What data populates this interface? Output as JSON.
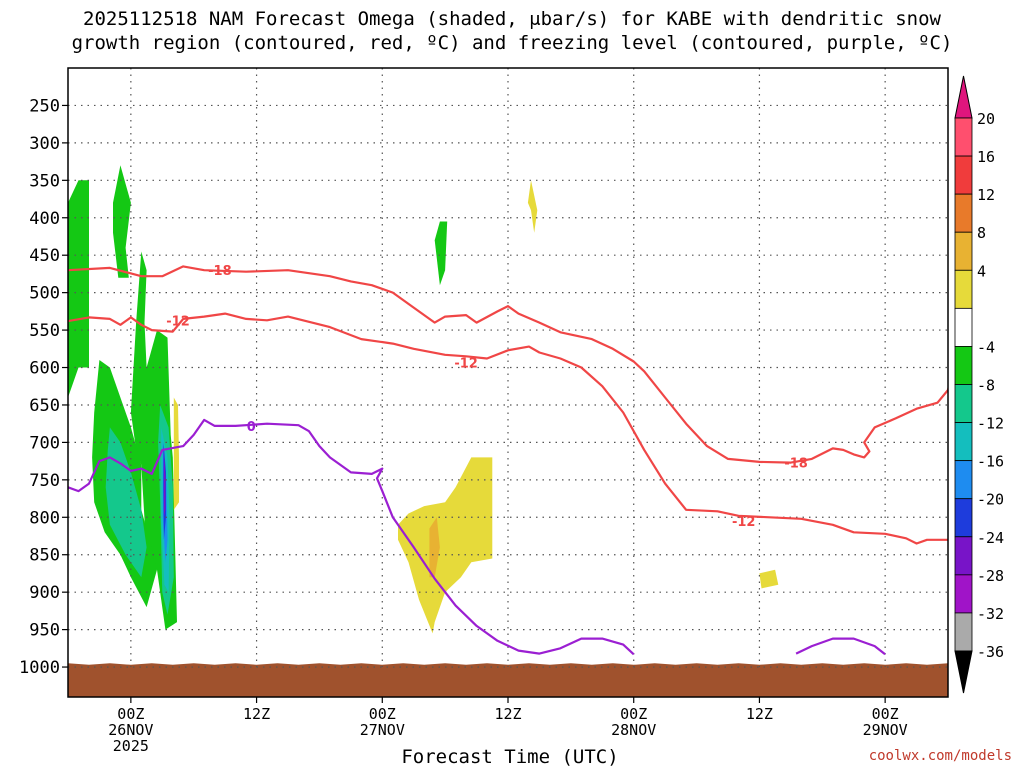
{
  "title_line1": "2025112518 NAM Forecast Omega (shaded, μbar/s) for KABE with dendritic snow",
  "title_line2": "growth region (contoured, red, ºC) and freezing level (contoured, purple, ºC)",
  "credit": "coolwx.com/models",
  "chart_data": {
    "type": "heatmap",
    "title": "2025112518 NAM Forecast Omega (shaded, μbar/s) for KABE with dendritic snow growth region (contoured, red, ºC) and freezing level (contoured, purple, ºC)",
    "xlabel": "Forecast Time (UTC)",
    "ylabel": "",
    "x_range_hours_from_2025-11-25T18Z": [
      0,
      84
    ],
    "y_range_hPa": [
      200,
      1040
    ],
    "y_ticks": [
      250,
      300,
      350,
      400,
      450,
      500,
      550,
      600,
      650,
      700,
      750,
      800,
      850,
      900,
      950,
      1000
    ],
    "x_ticks": [
      {
        "hour": 6,
        "lines": [
          "00Z",
          "26NOV",
          "2025"
        ]
      },
      {
        "hour": 18,
        "lines": [
          "12Z"
        ]
      },
      {
        "hour": 30,
        "lines": [
          "00Z",
          "27NOV"
        ]
      },
      {
        "hour": 42,
        "lines": [
          "12Z"
        ]
      },
      {
        "hour": 54,
        "lines": [
          "00Z",
          "28NOV"
        ]
      },
      {
        "hour": 66,
        "lines": [
          "12Z"
        ]
      },
      {
        "hour": 78,
        "lines": [
          "00Z",
          "29NOV"
        ]
      }
    ],
    "colorbar": {
      "labels": [
        "20",
        "16",
        "12",
        "8",
        "4",
        "-4",
        "-8",
        "-12",
        "-16",
        "-20",
        "-24",
        "-28",
        "-32",
        "-36"
      ],
      "colors": [
        "#ff4f6e",
        "#f03c3c",
        "#e87a2a",
        "#e8b232",
        "#e6da3a",
        "#ffffff",
        "#14c814",
        "#14c88c",
        "#14bebe",
        "#1e8cf0",
        "#1e3cdc",
        "#7814c8",
        "#a014c8",
        "#aaaaaa",
        "#000000"
      ],
      "over_color": "#e0157d",
      "under_color": "#000000"
    },
    "contours": [
      {
        "label": "-18",
        "color": "#f04646",
        "points": [
          [
            0,
            470
          ],
          [
            4,
            467
          ],
          [
            7,
            478
          ],
          [
            9,
            478
          ],
          [
            11,
            465
          ],
          [
            13,
            470
          ],
          [
            17,
            472
          ],
          [
            21,
            470
          ],
          [
            25,
            478
          ],
          [
            27,
            485
          ],
          [
            29,
            490
          ],
          [
            31,
            500
          ],
          [
            33,
            520
          ],
          [
            35,
            540
          ],
          [
            36,
            532
          ],
          [
            38,
            530
          ],
          [
            39,
            540
          ],
          [
            41,
            525
          ],
          [
            42,
            518
          ],
          [
            43,
            528
          ],
          [
            45,
            540
          ],
          [
            47,
            553
          ],
          [
            50,
            562
          ],
          [
            52,
            575
          ],
          [
            54,
            592
          ],
          [
            55,
            605
          ],
          [
            57,
            640
          ],
          [
            59,
            675
          ],
          [
            61,
            705
          ],
          [
            63,
            722
          ],
          [
            66,
            726
          ],
          [
            69,
            727
          ],
          [
            71,
            722
          ],
          [
            73,
            708
          ],
          [
            74,
            710
          ],
          [
            75,
            716
          ],
          [
            76,
            720
          ],
          [
            76.5,
            712
          ],
          [
            76,
            700
          ],
          [
            77,
            680
          ],
          [
            79,
            668
          ],
          [
            81,
            655
          ],
          [
            83,
            647
          ],
          [
            84,
            630
          ],
          [
            84.4,
            605
          ]
        ],
        "label_positions": [
          [
            14.5,
            470
          ],
          [
            69.5,
            727
          ]
        ]
      },
      {
        "label": "-12",
        "color": "#f04646",
        "points": [
          [
            0,
            538
          ],
          [
            2,
            533
          ],
          [
            4,
            535
          ],
          [
            5,
            543
          ],
          [
            6,
            533
          ],
          [
            7,
            543
          ],
          [
            8,
            550
          ],
          [
            10,
            552
          ],
          [
            11,
            535
          ],
          [
            13,
            532
          ],
          [
            15,
            528
          ],
          [
            17,
            535
          ],
          [
            19,
            537
          ],
          [
            21,
            532
          ],
          [
            25,
            546
          ],
          [
            28,
            562
          ],
          [
            31,
            568
          ],
          [
            33,
            575
          ],
          [
            36,
            583
          ],
          [
            38,
            585
          ],
          [
            40,
            588
          ],
          [
            42,
            577
          ],
          [
            44,
            572
          ],
          [
            45,
            580
          ],
          [
            47,
            588
          ],
          [
            49,
            600
          ],
          [
            51,
            625
          ],
          [
            53,
            660
          ],
          [
            55,
            710
          ],
          [
            57,
            755
          ],
          [
            59,
            790
          ],
          [
            62,
            792
          ],
          [
            64,
            798
          ],
          [
            67,
            800
          ],
          [
            70,
            802
          ],
          [
            73,
            810
          ],
          [
            75,
            820
          ],
          [
            78,
            822
          ],
          [
            80,
            828
          ],
          [
            81,
            835
          ],
          [
            82,
            830
          ],
          [
            84,
            830
          ],
          [
            84.4,
            822
          ]
        ],
        "label_positions": [
          [
            10.5,
            537
          ],
          [
            38,
            593
          ],
          [
            64.5,
            805
          ]
        ]
      },
      {
        "label": "0",
        "color": "#9b1fd2",
        "points": [
          [
            0,
            760
          ],
          [
            1,
            765
          ],
          [
            2,
            755
          ],
          [
            3,
            725
          ],
          [
            4,
            720
          ],
          [
            5,
            728
          ],
          [
            6,
            738
          ],
          [
            7,
            735
          ],
          [
            8,
            742
          ],
          [
            9,
            710
          ],
          [
            11,
            705
          ],
          [
            12,
            690
          ],
          [
            13,
            670
          ],
          [
            14,
            678
          ],
          [
            16,
            678
          ],
          [
            19,
            675
          ],
          [
            22,
            677
          ],
          [
            23,
            685
          ],
          [
            24,
            705
          ],
          [
            25,
            720
          ],
          [
            27,
            740
          ],
          [
            29,
            742
          ],
          [
            30,
            735
          ],
          [
            29.5,
            748
          ],
          [
            30,
            765
          ],
          [
            31,
            800
          ],
          [
            33,
            840
          ],
          [
            35,
            882
          ],
          [
            37,
            918
          ],
          [
            39,
            945
          ],
          [
            41,
            965
          ],
          [
            43,
            978
          ],
          [
            45,
            982
          ],
          [
            47,
            975
          ],
          [
            49,
            962
          ],
          [
            51,
            962
          ],
          [
            53,
            970
          ],
          [
            54,
            983
          ]
        ],
        "label_positions": [
          [
            17.5,
            678
          ]
        ]
      },
      {
        "label": "0",
        "color": "#9b1fd2",
        "points": [
          [
            69.5,
            982
          ],
          [
            71,
            972
          ],
          [
            73,
            962
          ],
          [
            75,
            962
          ],
          [
            77,
            972
          ],
          [
            78,
            983
          ]
        ],
        "label_positions": []
      }
    ],
    "shaded_regions": [
      {
        "value": "-8",
        "color": "#14c814",
        "points": [
          [
            0,
            380
          ],
          [
            1,
            350
          ],
          [
            2,
            350
          ],
          [
            2,
            600
          ],
          [
            1,
            600
          ],
          [
            0,
            640
          ]
        ]
      },
      {
        "value": "-8",
        "color": "#14c814",
        "points": [
          [
            4.3,
            380
          ],
          [
            5,
            330
          ],
          [
            6,
            380
          ],
          [
            5.5,
            440
          ],
          [
            5.8,
            480
          ],
          [
            4.8,
            480
          ],
          [
            4.3,
            420
          ]
        ]
      },
      {
        "value": "-8",
        "color": "#14c814",
        "points": [
          [
            6.5,
            540
          ],
          [
            7,
            445
          ],
          [
            7.5,
            470
          ],
          [
            7.3,
            540
          ],
          [
            7.5,
            600
          ],
          [
            8.5,
            550
          ],
          [
            9.5,
            560
          ],
          [
            9.8,
            690
          ],
          [
            10,
            720
          ],
          [
            10.4,
            940
          ],
          [
            9.3,
            950
          ],
          [
            8.5,
            870
          ],
          [
            7.5,
            850
          ],
          [
            7,
            730
          ],
          [
            6.5,
            710
          ],
          [
            6,
            660
          ]
        ]
      },
      {
        "value": "-8",
        "color": "#14c814",
        "points": [
          [
            3,
            590
          ],
          [
            4,
            600
          ],
          [
            5,
            640
          ],
          [
            6,
            680
          ],
          [
            7,
            730
          ],
          [
            7,
            790
          ],
          [
            8,
            840
          ],
          [
            8.5,
            870
          ],
          [
            7.5,
            920
          ],
          [
            6,
            880
          ],
          [
            5,
            850
          ],
          [
            3.5,
            820
          ],
          [
            2.5,
            780
          ],
          [
            2.3,
            720
          ],
          [
            2.5,
            660
          ]
        ]
      },
      {
        "value": "-12",
        "color": "#14c88c",
        "points": [
          [
            4,
            680
          ],
          [
            5,
            700
          ],
          [
            6,
            740
          ],
          [
            7,
            790
          ],
          [
            7.5,
            840
          ],
          [
            7,
            880
          ],
          [
            5.5,
            850
          ],
          [
            4,
            810
          ],
          [
            3.6,
            760
          ],
          [
            3.8,
            710
          ]
        ]
      },
      {
        "value": "-12",
        "color": "#14c88c",
        "points": [
          [
            8.8,
            650
          ],
          [
            9.6,
            680
          ],
          [
            10,
            760
          ],
          [
            10.1,
            880
          ],
          [
            9.5,
            930
          ],
          [
            9,
            900
          ],
          [
            8.8,
            780
          ],
          [
            8.6,
            700
          ]
        ]
      },
      {
        "value": "-16",
        "color": "#14bebe",
        "points": [
          [
            8.9,
            680
          ],
          [
            9.5,
            720
          ],
          [
            9.7,
            800
          ],
          [
            9.6,
            900
          ],
          [
            9.2,
            890
          ],
          [
            8.9,
            800
          ]
        ]
      },
      {
        "value": "-20",
        "color": "#1e8cf0",
        "points": [
          [
            9.05,
            700
          ],
          [
            9.4,
            750
          ],
          [
            9.5,
            830
          ],
          [
            9.3,
            860
          ],
          [
            9.05,
            800
          ]
        ]
      },
      {
        "value": "-24",
        "color": "#1e3cdc",
        "points": [
          [
            9.12,
            700
          ],
          [
            9.35,
            740
          ],
          [
            9.35,
            800
          ],
          [
            9.15,
            830
          ],
          [
            9.1,
            760
          ]
        ]
      },
      {
        "value": "-28",
        "color": "#7814c8",
        "points": [
          [
            9.15,
            710
          ],
          [
            9.3,
            745
          ],
          [
            9.3,
            790
          ],
          [
            9.15,
            800
          ]
        ]
      },
      {
        "value": "-8",
        "color": "#14c814",
        "points": [
          [
            35.5,
            405
          ],
          [
            36.2,
            405
          ],
          [
            36,
            470
          ],
          [
            35.5,
            490
          ],
          [
            35,
            430
          ]
        ]
      },
      {
        "value": "4",
        "color": "#e6da3a",
        "points": [
          [
            10.1,
            640
          ],
          [
            10.5,
            650
          ],
          [
            10.6,
            720
          ],
          [
            10.6,
            780
          ],
          [
            10.1,
            790
          ]
        ]
      },
      {
        "value": "4",
        "color": "#e6da3a",
        "points": [
          [
            44.2,
            350
          ],
          [
            44.8,
            390
          ],
          [
            44.5,
            420
          ],
          [
            44.2,
            390
          ],
          [
            43.9,
            380
          ]
        ]
      },
      {
        "value": "4",
        "color": "#e6da3a",
        "points": [
          [
            31.5,
            810
          ],
          [
            32.5,
            795
          ],
          [
            34,
            785
          ],
          [
            36,
            780
          ],
          [
            37,
            760
          ],
          [
            38.5,
            720
          ],
          [
            40.5,
            720
          ],
          [
            40.5,
            855
          ],
          [
            38.5,
            860
          ],
          [
            37.5,
            880
          ],
          [
            36,
            900
          ],
          [
            35,
            940
          ],
          [
            34.8,
            955
          ],
          [
            33.5,
            910
          ],
          [
            32.5,
            860
          ],
          [
            31.5,
            830
          ]
        ]
      },
      {
        "value": "8",
        "color": "#e8b232",
        "points": [
          [
            34.5,
            815
          ],
          [
            35.2,
            800
          ],
          [
            35.5,
            840
          ],
          [
            35,
            880
          ],
          [
            34.5,
            880
          ]
        ]
      },
      {
        "value": "4",
        "color": "#e6da3a",
        "points": [
          [
            66,
            875
          ],
          [
            67.5,
            870
          ],
          [
            67.8,
            890
          ],
          [
            66.2,
            895
          ]
        ]
      },
      {
        "value": "4",
        "color": "#e6da3a",
        "points": [
          [
            84,
            835
          ],
          [
            84.4,
            825
          ],
          [
            84.4,
            885
          ],
          [
            84,
            880
          ]
        ]
      }
    ],
    "terrain": {
      "color": "#a0522d",
      "top_hPa": 995
    }
  },
  "x_axis_label": "Forecast Time (UTC)"
}
